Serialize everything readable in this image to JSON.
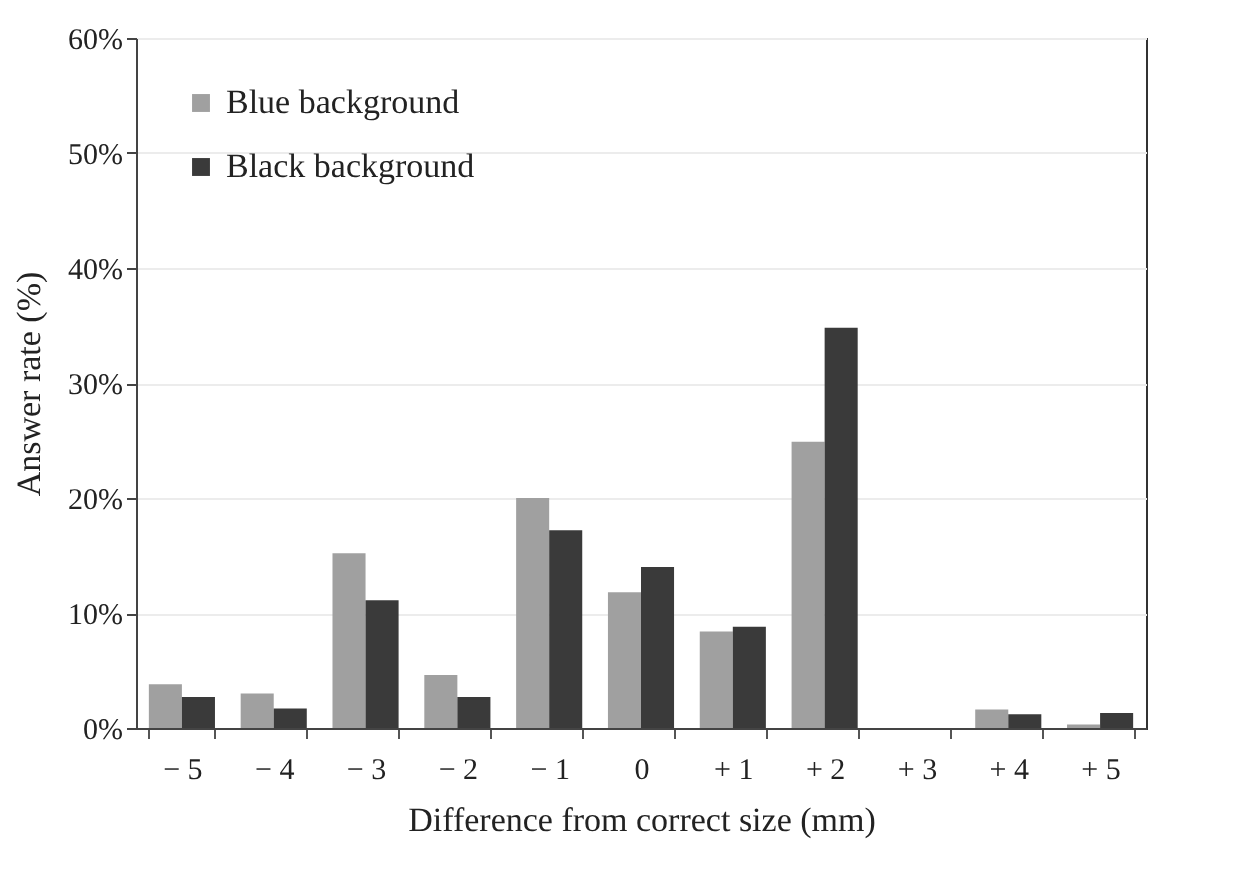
{
  "chart_data": {
    "type": "bar",
    "xlabel": "Difference from correct size (mm)",
    "ylabel": "Answer rate  (%)",
    "categories": [
      "− 5",
      "− 4",
      "− 3",
      "− 2",
      "− 1",
      "0",
      "+ 1",
      "+ 2",
      "+ 3",
      "+ 4",
      "+ 5"
    ],
    "series": [
      {
        "name": "Blue background",
        "color": "#a0a0a0",
        "values": [
          3.8,
          3.0,
          15.2,
          4.6,
          20.0,
          11.8,
          8.4,
          24.9,
          0,
          1.6,
          0.3
        ]
      },
      {
        "name": "Black background",
        "color": "#3a3a3a",
        "values": [
          2.7,
          1.7,
          11.1,
          2.7,
          17.2,
          14.0,
          8.8,
          34.8,
          0,
          1.2,
          1.3
        ]
      }
    ],
    "ylim": [
      0,
      60
    ],
    "yticks": [
      {
        "value": 0,
        "label": "0%"
      },
      {
        "value": 10,
        "label": "10%"
      },
      {
        "value": 20,
        "label": "20%"
      },
      {
        "value": 30,
        "label": "30%"
      },
      {
        "value": 40,
        "label": "40%"
      },
      {
        "value": 50,
        "label": "50%"
      },
      {
        "value": 60,
        "label": "60%"
      }
    ],
    "grid": "y",
    "legend": "top left"
  }
}
